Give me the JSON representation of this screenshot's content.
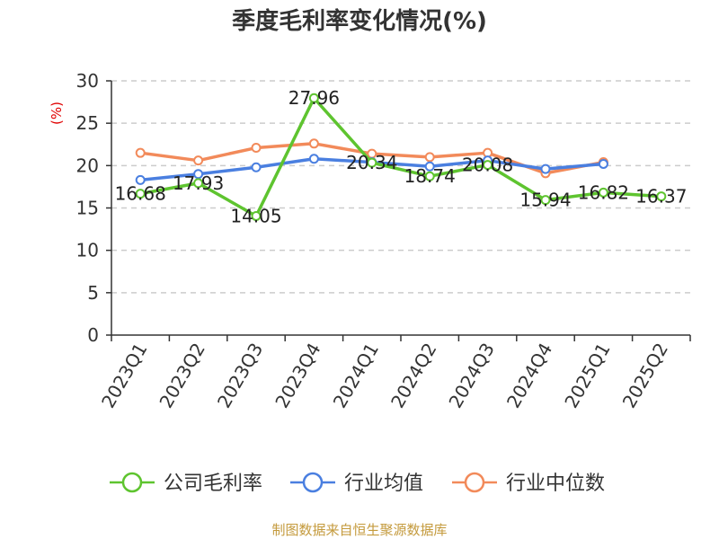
{
  "colors": {
    "company": "#5ec42f",
    "industry_avg": "#4a7fe0",
    "industry_median": "#f28a5a",
    "grid": "#cccccc",
    "axis": "#333333"
  },
  "footer": {
    "source": "制图数据来自恒生聚源数据库"
  },
  "chart_data": {
    "type": "line",
    "title": "季度毛利率变化情况(%)",
    "ylabel": "(%)",
    "xlabel": "",
    "ylim": [
      0,
      30
    ],
    "yticks": [
      0,
      5,
      10,
      15,
      20,
      25,
      30
    ],
    "grid": true,
    "legend_position": "bottom",
    "categories": [
      "2023Q1",
      "2023Q2",
      "2023Q3",
      "2023Q4",
      "2024Q1",
      "2024Q2",
      "2024Q3",
      "2024Q4",
      "2025Q1",
      "2025Q2"
    ],
    "series": [
      {
        "name": "公司毛利率",
        "color_key": "company",
        "values": [
          16.68,
          17.93,
          14.05,
          27.96,
          20.34,
          18.74,
          20.08,
          15.94,
          16.82,
          16.37
        ],
        "labels": [
          "16.68",
          "17.93",
          "14.05",
          "27.96",
          "20.34",
          "18.74",
          "20.08",
          "15.94",
          "16.82",
          "16.37"
        ]
      },
      {
        "name": "行业均值",
        "color_key": "industry_avg",
        "values": [
          18.3,
          19.0,
          19.8,
          20.8,
          20.4,
          19.9,
          20.6,
          19.6,
          20.2,
          null
        ]
      },
      {
        "name": "行业中位数",
        "color_key": "industry_median",
        "values": [
          21.5,
          20.6,
          22.1,
          22.6,
          21.4,
          21.0,
          21.5,
          19.1,
          20.4,
          null
        ]
      }
    ]
  }
}
